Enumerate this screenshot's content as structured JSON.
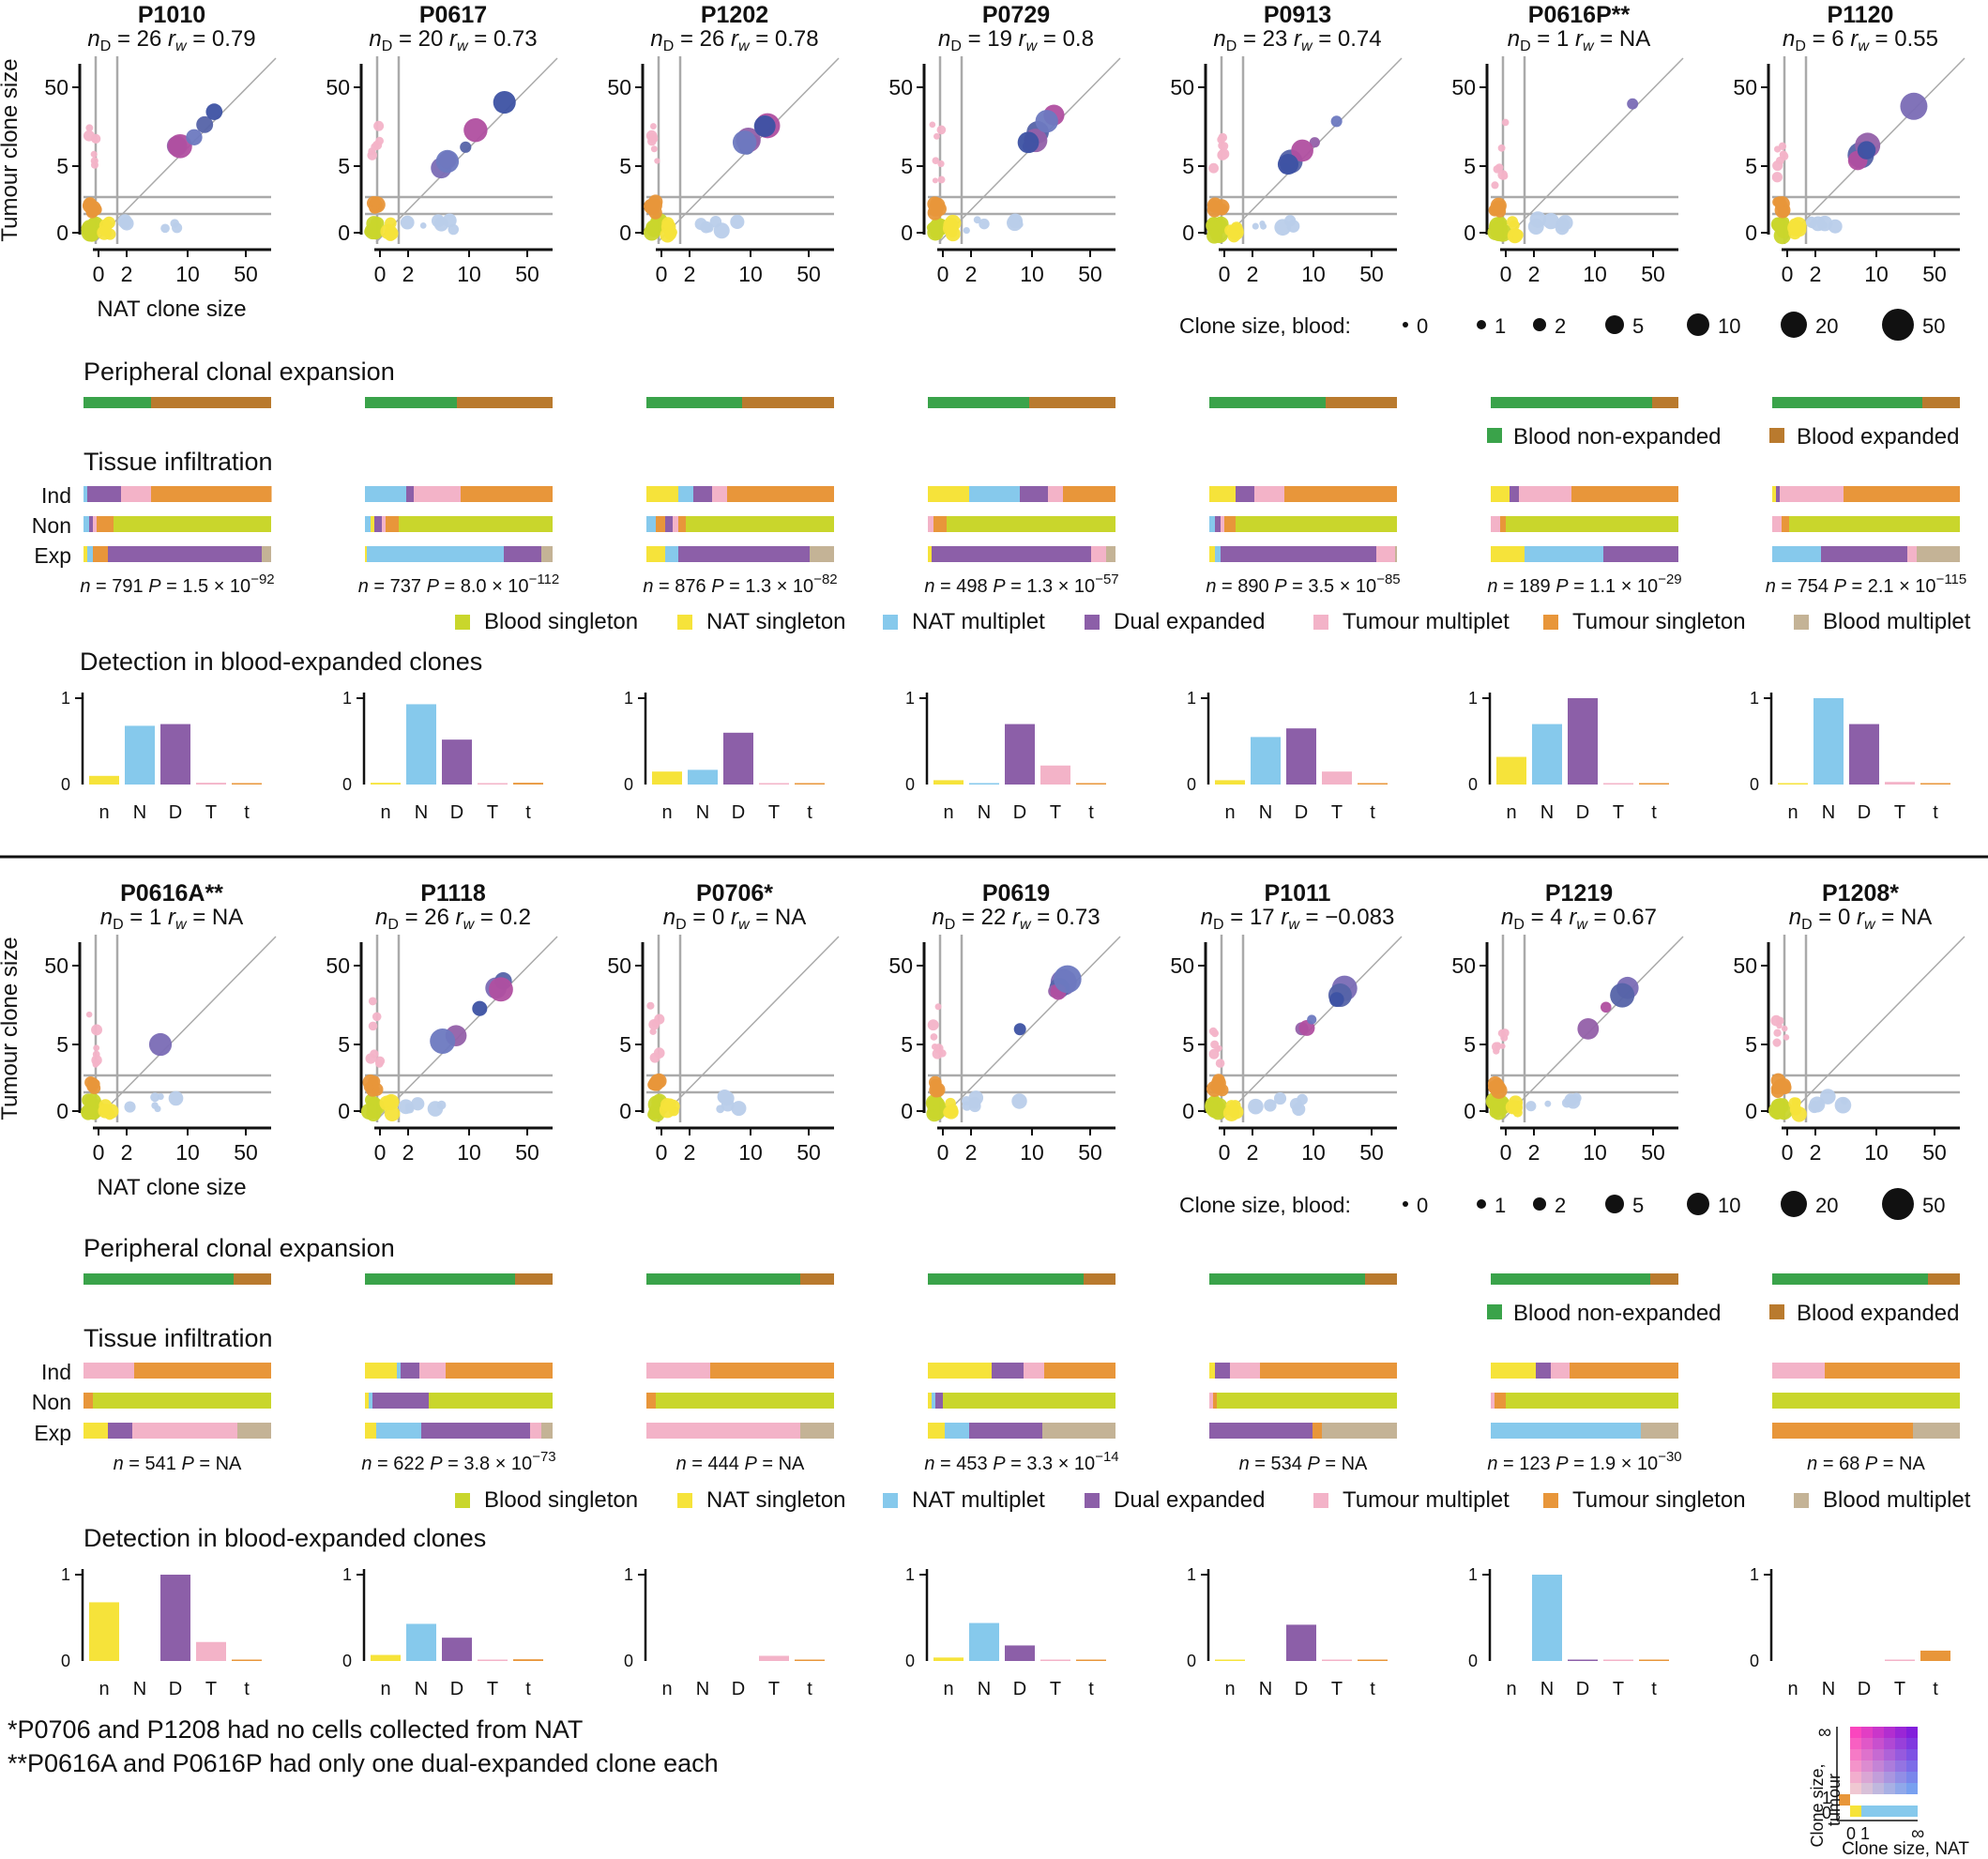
{
  "labels": {
    "y_axis_scatter": "Tumour clone size",
    "x_axis_scatter": "NAT clone size",
    "scatter_ticks": [
      "0",
      "2",
      "5",
      "10",
      "50"
    ],
    "scatter_xticks": [
      "0",
      "2",
      "10",
      "50"
    ],
    "scatter_yticks": [
      "0",
      "5",
      "50"
    ],
    "peripheral_title": "Peripheral clonal expansion",
    "tissue_title": "Tissue infiltration",
    "detection_title": "Detection in blood-expanded clones",
    "row_ind": "Ind",
    "row_non": "Non",
    "row_exp": "Exp",
    "blood_size_title": "Clone size, blood:",
    "blood_sizes": [
      "0",
      "1",
      "2",
      "5",
      "10",
      "20",
      "50"
    ],
    "det_cats": [
      "n",
      "N",
      "D",
      "T",
      "t"
    ],
    "det_y0": "0",
    "det_y1": "1",
    "footnote1": "*P0706 and P1208 had no cells collected from NAT",
    "footnote2": "**P0616A and P0616P had only one dual-expanded clone each",
    "key_ylabel1": "Clone size,",
    "key_ylabel2": "tumour",
    "key_xlabel": "Clone size, NAT",
    "key_inf": "∞",
    "key_one": "1",
    "key_zero": "0",
    "key_x01": "0 1"
  },
  "legend": {
    "blood_non_expanded": "Blood non-expanded",
    "blood_expanded": "Blood expanded",
    "categories": [
      "Blood singleton",
      "NAT singleton",
      "NAT multiplet",
      "Dual expanded",
      "Tumour multiplet",
      "Tumour singleton",
      "Blood multiplet"
    ]
  },
  "colors": {
    "blood_non_expanded": "#3aa34a",
    "blood_expanded": "#b97a2e",
    "blood_singleton": "#c9d62c",
    "nat_singleton": "#f6e33a",
    "nat_multiplet": "#86c9ec",
    "dual_expanded": "#8c5fa8",
    "tumour_multiplet": "#f3b3c8",
    "tumour_singleton": "#e8963a",
    "blood_multiplet": "#c4b396"
  },
  "chart_data": [
    {
      "patient": "P1010",
      "stat_n": "26",
      "stat_rw": "0.79",
      "n": "791",
      "p": "1.5 × 10",
      "p_exp": "−92",
      "peripheral": [
        0.36,
        0.64
      ],
      "ind": [
        0,
        0.02,
        0.18,
        0.16,
        0.64,
        0
      ],
      "non": [
        0.03,
        0,
        0.02,
        0.02,
        0.03,
        0.06,
        0.84
      ],
      "exp": [
        0.02,
        0.03,
        0.08,
        0.82,
        0,
        0.05
      ],
      "det": [
        0.1,
        0.68,
        0.7,
        0.02,
        0.01
      ]
    },
    {
      "patient": "P0617",
      "stat_n": "20",
      "stat_rw": "0.73",
      "n": "737",
      "p": "8.0 × 10",
      "p_exp": "−112",
      "peripheral": [
        0.49,
        0.51
      ],
      "ind": [
        0,
        0.22,
        0.04,
        0.25,
        0.08,
        0.41
      ],
      "non": [
        0.03,
        0.02,
        0.04,
        0.02,
        0.03,
        0.04,
        0.82
      ],
      "exp": [
        0.01,
        0.73,
        0.2,
        0.06
      ],
      "det": [
        0.02,
        0.93,
        0.52,
        0.01,
        0.02
      ]
    },
    {
      "patient": "P1202",
      "stat_n": "26",
      "stat_rw": "0.78",
      "n": "876",
      "p": "1.3 × 10",
      "p_exp": "−82",
      "peripheral": [
        0.51,
        0.49
      ],
      "ind": [
        0.17,
        0.08,
        0.1,
        0.08,
        0.57
      ],
      "non": [
        0.05,
        0.05,
        0.04,
        0.03,
        0.04,
        0.79
      ],
      "exp": [
        0.1,
        0.07,
        0.7,
        0.13
      ],
      "det": [
        0.15,
        0.17,
        0.6,
        0.01,
        0.01
      ]
    },
    {
      "patient": "P0729",
      "stat_n": "19",
      "stat_rw": "0.8",
      "n": "498",
      "p": "1.3 × 10",
      "p_exp": "−57",
      "peripheral": [
        0.54,
        0.46
      ],
      "ind": [
        0.22,
        0.27,
        0.15,
        0.08,
        0.28
      ],
      "non": [
        0.03,
        0.07,
        0.9
      ],
      "exp": [
        0.02,
        0.85,
        0.08,
        0.05
      ],
      "det": [
        0.05,
        0.01,
        0.7,
        0.22,
        0.01
      ]
    },
    {
      "patient": "P0913",
      "stat_n": "23",
      "stat_rw": "0.74",
      "n": "890",
      "p": "3.5 × 10",
      "p_exp": "−85",
      "peripheral": [
        0.62,
        0.38
      ],
      "ind": [
        0.14,
        0.1,
        0.16,
        0.6
      ],
      "non": [
        0.03,
        0.03,
        0.02,
        0.06,
        0.86
      ],
      "exp": [
        0.03,
        0.03,
        0.83,
        0.1,
        0.01
      ],
      "det": [
        0.05,
        0.55,
        0.65,
        0.15,
        0.01
      ]
    },
    {
      "patient": "P0616P**",
      "stat_n": "1",
      "stat_rw": "NA",
      "n": "189",
      "p": "1.1 × 10",
      "p_exp": "−29",
      "peripheral": [
        0.86,
        0.14
      ],
      "ind": [
        0.1,
        0.05,
        0.28,
        0.57
      ],
      "non": [
        0.05,
        0.03,
        0.92
      ],
      "exp": [
        0.18,
        0.42,
        0.4
      ],
      "det": [
        0.32,
        0.7,
        1.0,
        0.01,
        0.01
      ]
    },
    {
      "patient": "P1120",
      "stat_n": "6",
      "stat_rw": "0.55",
      "n": "754",
      "p": "2.1 × 10",
      "p_exp": "−115",
      "peripheral": [
        0.8,
        0.2
      ],
      "ind": [
        0.02,
        0.02,
        0.34,
        0.62
      ],
      "non": [
        0.05,
        0.04,
        0.91
      ],
      "exp": [
        0.26,
        0.46,
        0.05,
        0.23
      ],
      "det": [
        0.01,
        1.0,
        0.7,
        0.03,
        0.01
      ]
    },
    {
      "patient": "P0616A**",
      "stat_n": "1",
      "stat_rw": "NA",
      "n": "541",
      "p": "NA",
      "p_exp": "",
      "peripheral": [
        0.8,
        0.2
      ],
      "ind": [
        0.27,
        0.73
      ],
      "non": [
        0.05,
        0.95
      ],
      "exp": [
        0.13,
        0.13,
        0.56,
        0.18
      ],
      "det": [
        0.68,
        0,
        1.0,
        0.22,
        0.01
      ]
    },
    {
      "patient": "P1118",
      "stat_n": "26",
      "stat_rw": "0.2",
      "n": "622",
      "p": "3.8 × 10",
      "p_exp": "−73",
      "peripheral": [
        0.8,
        0.2
      ],
      "ind": [
        0.17,
        0.02,
        0.1,
        0.14,
        0.57
      ],
      "non": [
        0.02,
        0.02,
        0.3,
        0.66
      ],
      "exp": [
        0.06,
        0.24,
        0.58,
        0.06,
        0.06
      ],
      "det": [
        0.07,
        0.43,
        0.27,
        0.01,
        0.02
      ]
    },
    {
      "patient": "P0706*",
      "stat_n": "0",
      "stat_rw": "NA",
      "n": "444",
      "p": "NA",
      "p_exp": "",
      "peripheral": [
        0.82,
        0.18
      ],
      "ind": [
        0.34,
        0.66
      ],
      "non": [
        0.05,
        0.95
      ],
      "exp": [
        0.82,
        0.18
      ],
      "det": [
        0,
        0,
        0,
        0.06,
        0.01
      ]
    },
    {
      "patient": "P0619",
      "stat_n": "22",
      "stat_rw": "0.73",
      "n": "453",
      "p": "3.3 × 10",
      "p_exp": "−14",
      "peripheral": [
        0.83,
        0.17
      ],
      "ind": [
        0.34,
        0.17,
        0.11,
        0.38
      ],
      "non": [
        0.02,
        0.02,
        0.04,
        0.92
      ],
      "exp": [
        0.09,
        0.13,
        0.39,
        0.39
      ],
      "det": [
        0.04,
        0.44,
        0.18,
        0.01,
        0.01
      ]
    },
    {
      "patient": "P1011",
      "stat_n": "17",
      "stat_rw": "−0.083",
      "n": "534",
      "p": "NA",
      "p_exp": "",
      "peripheral": [
        0.83,
        0.17
      ],
      "ind": [
        0.03,
        0.08,
        0.16,
        0.73
      ],
      "non": [
        0.02,
        0.02,
        0.96
      ],
      "exp": [
        0.55,
        0.05,
        0.4
      ],
      "det": [
        0.01,
        0,
        0.42,
        0.01,
        0.01
      ]
    },
    {
      "patient": "P1219",
      "stat_n": "4",
      "stat_rw": "0.67",
      "n": "123",
      "p": "1.9 × 10",
      "p_exp": "−30",
      "peripheral": [
        0.85,
        0.15
      ],
      "ind": [
        0.24,
        0.08,
        0.1,
        0.58
      ],
      "non": [
        0.02,
        0.06,
        0.92
      ],
      "exp": [
        0.8,
        0.2
      ],
      "det": [
        0,
        1.0,
        0.01,
        0.01,
        0.01
      ]
    },
    {
      "patient": "P1208*",
      "stat_n": "0",
      "stat_rw": "NA",
      "n": "68",
      "p": "NA",
      "p_exp": "",
      "peripheral": [
        0.83,
        0.17
      ],
      "ind": [
        0.28,
        0.72
      ],
      "non": [
        1.0
      ],
      "exp": [
        0.75,
        0.25
      ],
      "det": [
        0,
        0,
        0,
        0.01,
        0.12
      ]
    }
  ]
}
